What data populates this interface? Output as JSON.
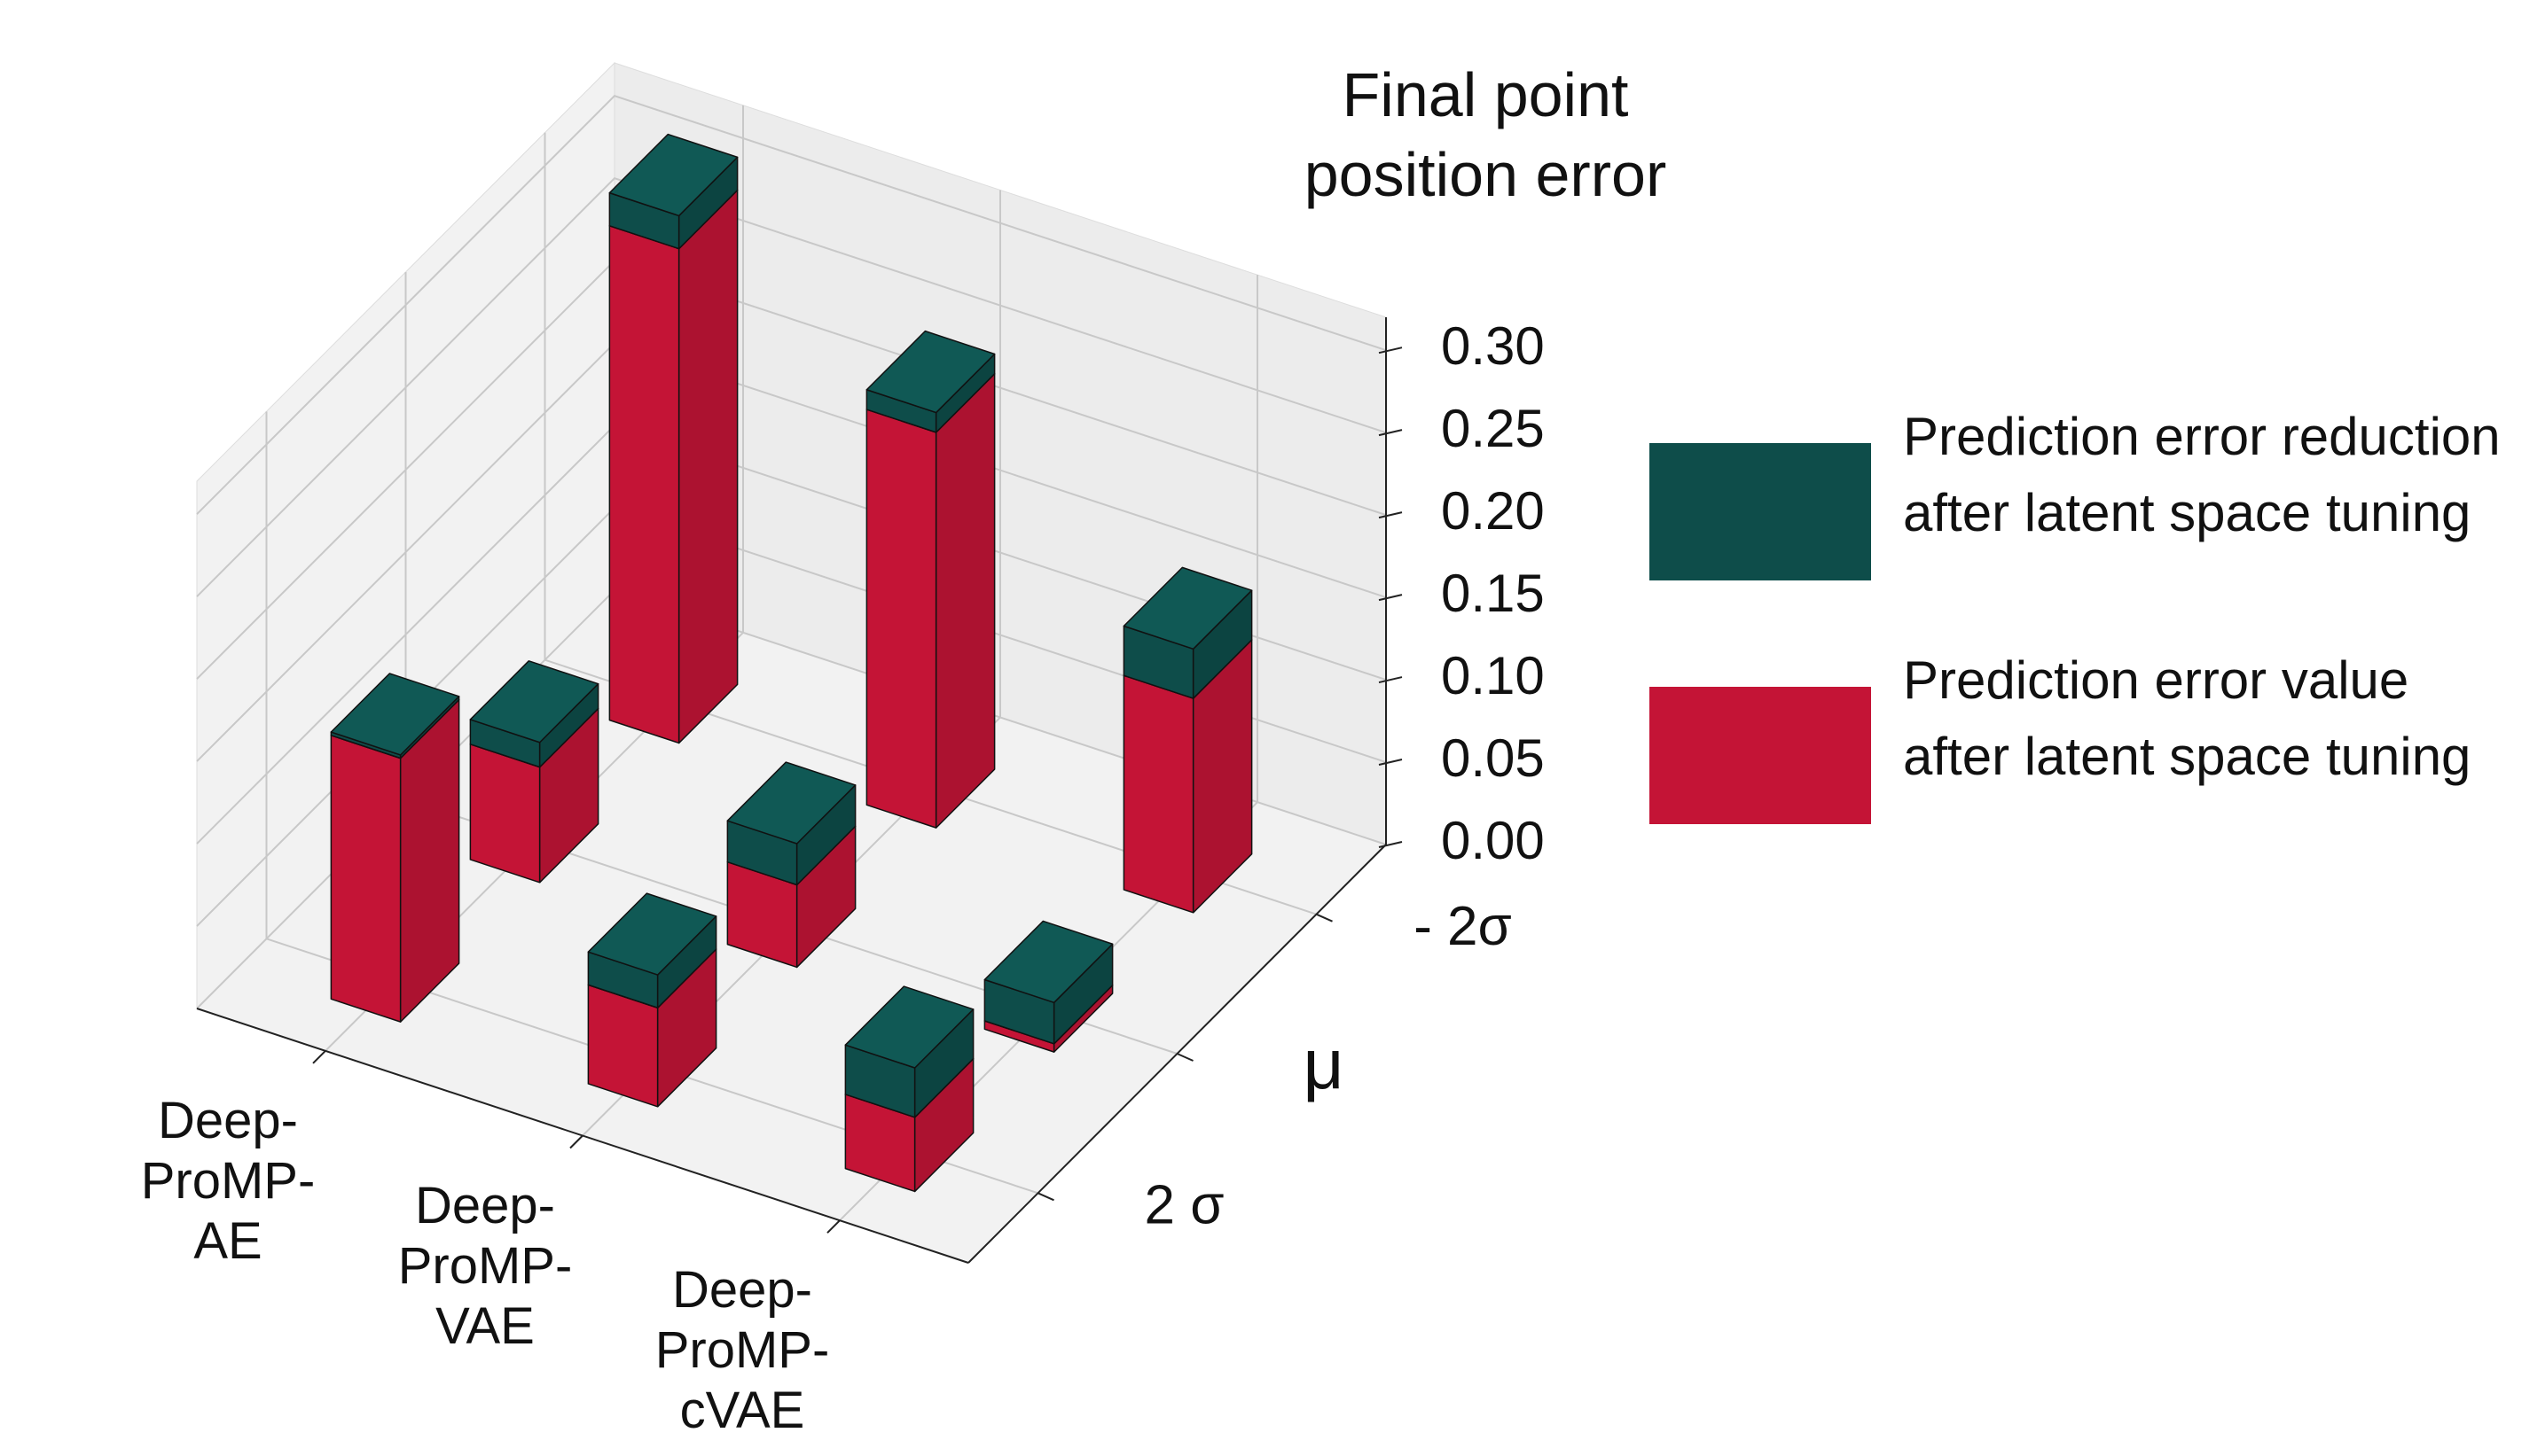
{
  "chart_data": {
    "type": "bar3d",
    "title": "Final point position error",
    "categories": [
      "Deep-ProMP-AE",
      "Deep-ProMP-VAE",
      "Deep-ProMP-cVAE"
    ],
    "y_categories": [
      "- 2σ",
      "μ",
      "2 σ"
    ],
    "series": [
      {
        "name": "Prediction error value after latent space tuning",
        "color": "#c41436",
        "values": [
          [
            0.3,
            0.07,
            0.16
          ],
          [
            0.24,
            0.05,
            0.06
          ],
          [
            0.13,
            0.005,
            0.045
          ]
        ]
      },
      {
        "name": "Prediction error reduction after latent space tuning",
        "color": "#0e4d4a",
        "values": [
          [
            0.02,
            0.015,
            0.002
          ],
          [
            0.012,
            0.025,
            0.02
          ],
          [
            0.03,
            0.025,
            0.03
          ]
        ]
      }
    ],
    "zlim": [
      0,
      0.32
    ],
    "zticks": [
      {
        "value": 0,
        "label": "0.00"
      },
      {
        "value": 0.05,
        "label": "0.05"
      },
      {
        "value": 0.1,
        "label": "0.10"
      },
      {
        "value": 0.15,
        "label": "0.15"
      },
      {
        "value": 0.2,
        "label": "0.20"
      },
      {
        "value": 0.25,
        "label": "0.25"
      },
      {
        "value": 0.3,
        "label": "0.30"
      }
    ],
    "grid": true
  }
}
